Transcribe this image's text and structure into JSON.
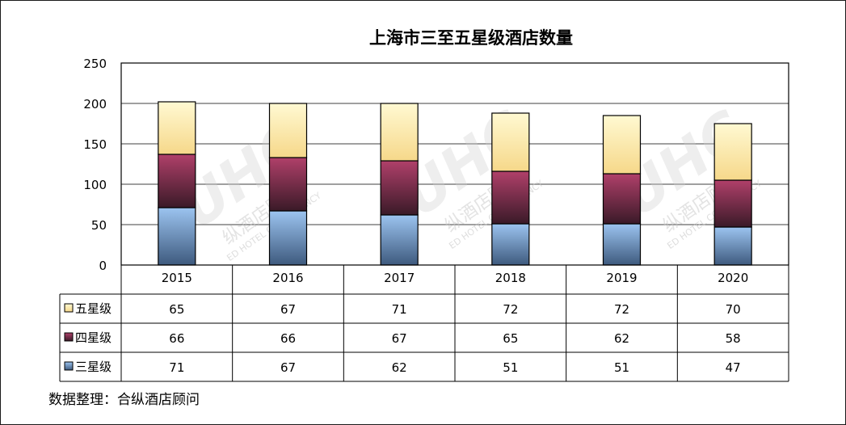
{
  "chart_data": {
    "type": "bar",
    "stacked": true,
    "title": "上海市三至五星级酒店数量",
    "categories": [
      "2015",
      "2016",
      "2017",
      "2018",
      "2019",
      "2020"
    ],
    "series": [
      {
        "name": "三星级",
        "values": [
          71,
          67,
          62,
          51,
          51,
          47
        ],
        "color": "#5b7fa8"
      },
      {
        "name": "四星级",
        "values": [
          66,
          66,
          67,
          65,
          62,
          58
        ],
        "color": "#8b2f4c"
      },
      {
        "name": "五星级",
        "values": [
          65,
          67,
          71,
          72,
          72,
          70
        ],
        "color": "#fde9a8"
      }
    ],
    "yticks": [
      "0",
      "50",
      "100",
      "150",
      "200",
      "250"
    ],
    "ylim": [
      0,
      250
    ],
    "grid": true,
    "legend": "data-table-left"
  },
  "source_note": "数据整理：合纵酒店顾问",
  "watermark": {
    "logo": "UHC",
    "text_cn": "纵酒店顾问",
    "text_en": "ED HOTEL CONSULTANCY"
  }
}
